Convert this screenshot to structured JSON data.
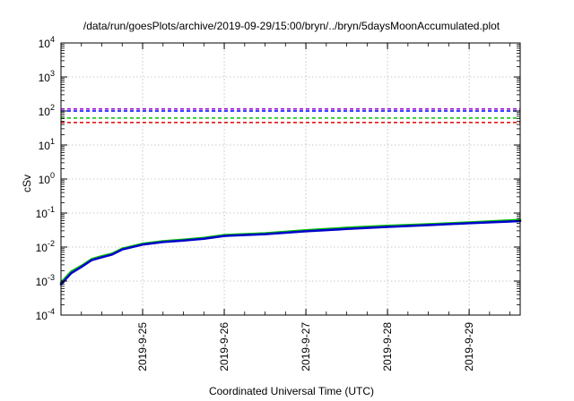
{
  "chart_data": {
    "type": "line",
    "title": "/data/run/goesPlots/archive/2019-09-29/15:00/bryn/../bryn/5daysMoonAccumulated.plot",
    "xlabel": "Coordinated Universal Time (UTC)",
    "ylabel": "cSv",
    "yscale": "log",
    "ylim": [
      0.0001,
      10000
    ],
    "xlim": [
      "2019-09-24 00:00",
      "2019-09-29 15:00"
    ],
    "grid": true,
    "x_ticks": [
      "2019-9-25",
      "2019-9-26",
      "2019-9-27",
      "2019-9-28",
      "2019-9-29"
    ],
    "y_ticks": [
      {
        "base": "10",
        "exp": "-4"
      },
      {
        "base": "10",
        "exp": "-3"
      },
      {
        "base": "10",
        "exp": "-2"
      },
      {
        "base": "10",
        "exp": "-1"
      },
      {
        "base": "10",
        "exp": "0"
      },
      {
        "base": "10",
        "exp": "1"
      },
      {
        "base": "10",
        "exp": "2"
      },
      {
        "base": "10",
        "exp": "3"
      },
      {
        "base": "10",
        "exp": "4"
      }
    ],
    "reference_lines": [
      {
        "color": "#9400d3",
        "value": 115,
        "style": "dashed"
      },
      {
        "color": "#0000ff",
        "value": 100,
        "style": "dashed"
      },
      {
        "color": "#00c000",
        "value": 62,
        "style": "dashed"
      },
      {
        "color": "#e00000",
        "value": 46,
        "style": "dashed"
      }
    ],
    "series": [
      {
        "color": "#00c000",
        "x": [
          "2019-09-24 00:00",
          "2019-09-24 03:00",
          "2019-09-24 06:00",
          "2019-09-24 09:00",
          "2019-09-24 12:00",
          "2019-09-24 15:00",
          "2019-09-24 18:00",
          "2019-09-25 00:00",
          "2019-09-25 06:00",
          "2019-09-25 12:00",
          "2019-09-25 18:00",
          "2019-09-26 00:00",
          "2019-09-26 12:00",
          "2019-09-27 00:00",
          "2019-09-27 12:00",
          "2019-09-28 00:00",
          "2019-09-28 12:00",
          "2019-09-29 00:00",
          "2019-09-29 15:00"
        ],
        "values": [
          0.0009,
          0.0019,
          0.0028,
          0.0044,
          0.0054,
          0.0064,
          0.009,
          0.0125,
          0.0148,
          0.0165,
          0.0185,
          0.0225,
          0.0255,
          0.031,
          0.037,
          0.042,
          0.047,
          0.053,
          0.063
        ]
      },
      {
        "color": "#0000cc",
        "x": [
          "2019-09-24 00:00",
          "2019-09-24 03:00",
          "2019-09-24 06:00",
          "2019-09-24 09:00",
          "2019-09-24 12:00",
          "2019-09-24 15:00",
          "2019-09-24 18:00",
          "2019-09-25 00:00",
          "2019-09-25 06:00",
          "2019-09-25 12:00",
          "2019-09-25 18:00",
          "2019-09-26 00:00",
          "2019-09-26 12:00",
          "2019-09-27 00:00",
          "2019-09-27 12:00",
          "2019-09-28 00:00",
          "2019-09-28 12:00",
          "2019-09-29 00:00",
          "2019-09-29 15:00"
        ],
        "values": [
          0.0008,
          0.0017,
          0.0026,
          0.0041,
          0.005,
          0.006,
          0.0085,
          0.0118,
          0.014,
          0.0156,
          0.0175,
          0.0212,
          0.024,
          0.029,
          0.034,
          0.039,
          0.044,
          0.05,
          0.058
        ]
      }
    ]
  }
}
